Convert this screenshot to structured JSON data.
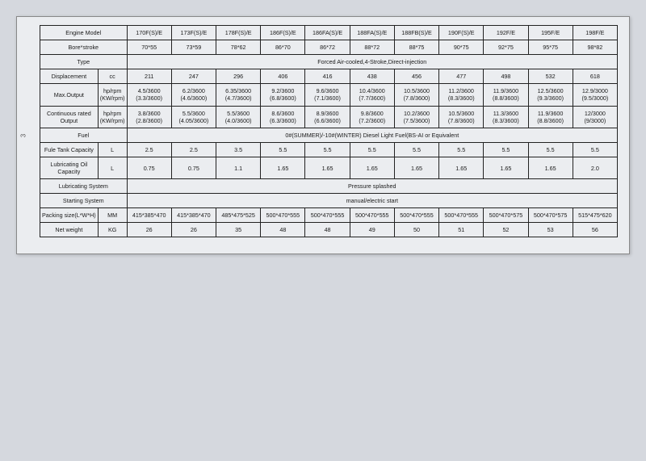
{
  "page_number": "3",
  "table": {
    "background_color": "#ebedf0",
    "border_color": "#222222",
    "font_size_pt": 7,
    "rows": {
      "engine_model": {
        "label": "Engine Model",
        "values": [
          "170F(S)/E",
          "173F(S)/E",
          "178F(S)/E",
          "186F(S)/E",
          "186FA(S)/E",
          "188FA(S)/E",
          "188FB(S)/E",
          "190F(S)/E",
          "192F/E",
          "195F/E",
          "198F/E"
        ]
      },
      "bore_stroke": {
        "label": "Bore*stroke",
        "values": [
          "70*55",
          "73*59",
          "78*62",
          "86*70",
          "86*72",
          "88*72",
          "88*75",
          "90*75",
          "92*75",
          "95*75",
          "98*82"
        ]
      },
      "type": {
        "label": "Type",
        "value": "Forced Air-cooled,4-Stroke,Direct-injection"
      },
      "displacement": {
        "label": "Displacement",
        "unit": "cc",
        "values": [
          "211",
          "247",
          "296",
          "406",
          "416",
          "438",
          "456",
          "477",
          "498",
          "532",
          "618"
        ]
      },
      "max_output": {
        "label": "Max.Output",
        "unit_top": "hp/rpm",
        "unit_bot": "(KW/rpm)",
        "top": [
          "4.5/3600",
          "6.2/3600",
          "6.35/3600",
          "9.2/3600",
          "9.6/3600",
          "10.4/3600",
          "10.5/3600",
          "11.2/3600",
          "11.9/3600",
          "12.5/3600",
          "12.9/3000"
        ],
        "bot": [
          "(3.3/3600)",
          "(4.6/3600)",
          "(4.7/3600)",
          "(6.8/3600)",
          "(7.1/3600)",
          "(7.7/3600)",
          "(7.8/3600)",
          "(8.3/3600)",
          "(8.8/3600)",
          "(9.3/3600)",
          "(9.5/3000)"
        ]
      },
      "cont_output": {
        "label": "Continuous rated Output",
        "unit_top": "hp/rpm",
        "unit_bot": "(KW/rpm)",
        "top": [
          "3.8/3600",
          "5.5/3600",
          "5.5/3600",
          "8.6/3600",
          "8.9/3600",
          "9.8/3600",
          "10.2/3600",
          "10.5/3600",
          "11.3/3600",
          "11.9/3600",
          "12/3000"
        ],
        "bot": [
          "(2.8/3600)",
          "(4.05/3600)",
          "(4.0/3600)",
          "(6.3/3600)",
          "(6.6/3600)",
          "(7.2/3600)",
          "(7.5/3600)",
          "(7.8/3600)",
          "(8.3/3600)",
          "(8.8/3600)",
          "(9/3000)"
        ]
      },
      "fuel": {
        "label": "Fuel",
        "value": "0#(SUMMER)/-10#(WINTER) Diesel Light Fuel(BS-AI or Equivalent"
      },
      "fuel_tank": {
        "label": "Fule Tank Capacity",
        "unit": "L",
        "values": [
          "2.5",
          "2.5",
          "3.5",
          "5.5",
          "5.5",
          "5.5",
          "5.5",
          "5.5",
          "5.5",
          "5.5",
          "5.5"
        ]
      },
      "oil_cap": {
        "label": "Lubricating Oil Capacity",
        "unit": "L",
        "values": [
          "0.75",
          "0.75",
          "1.1",
          "1.65",
          "1.65",
          "1.65",
          "1.65",
          "1.65",
          "1.65",
          "1.65",
          "2.0"
        ]
      },
      "lub_system": {
        "label": "Lubricating System",
        "value": "Pressure splashed"
      },
      "start_system": {
        "label": "Starting System",
        "value": "manual/electric start"
      },
      "packing": {
        "label": "Packing size(L*W*H)",
        "unit": "MM",
        "values": [
          "415*385*470",
          "415*385*470",
          "485*475*525",
          "500*470*555",
          "500*470*555",
          "500*470*555",
          "500*470*555",
          "500*470*555",
          "500*470*575",
          "500*470*575",
          "515*475*620"
        ]
      },
      "net_weight": {
        "label": "Net weight",
        "unit": "KG",
        "values": [
          "26",
          "26",
          "35",
          "48",
          "48",
          "49",
          "50",
          "51",
          "52",
          "53",
          "56"
        ]
      }
    }
  }
}
